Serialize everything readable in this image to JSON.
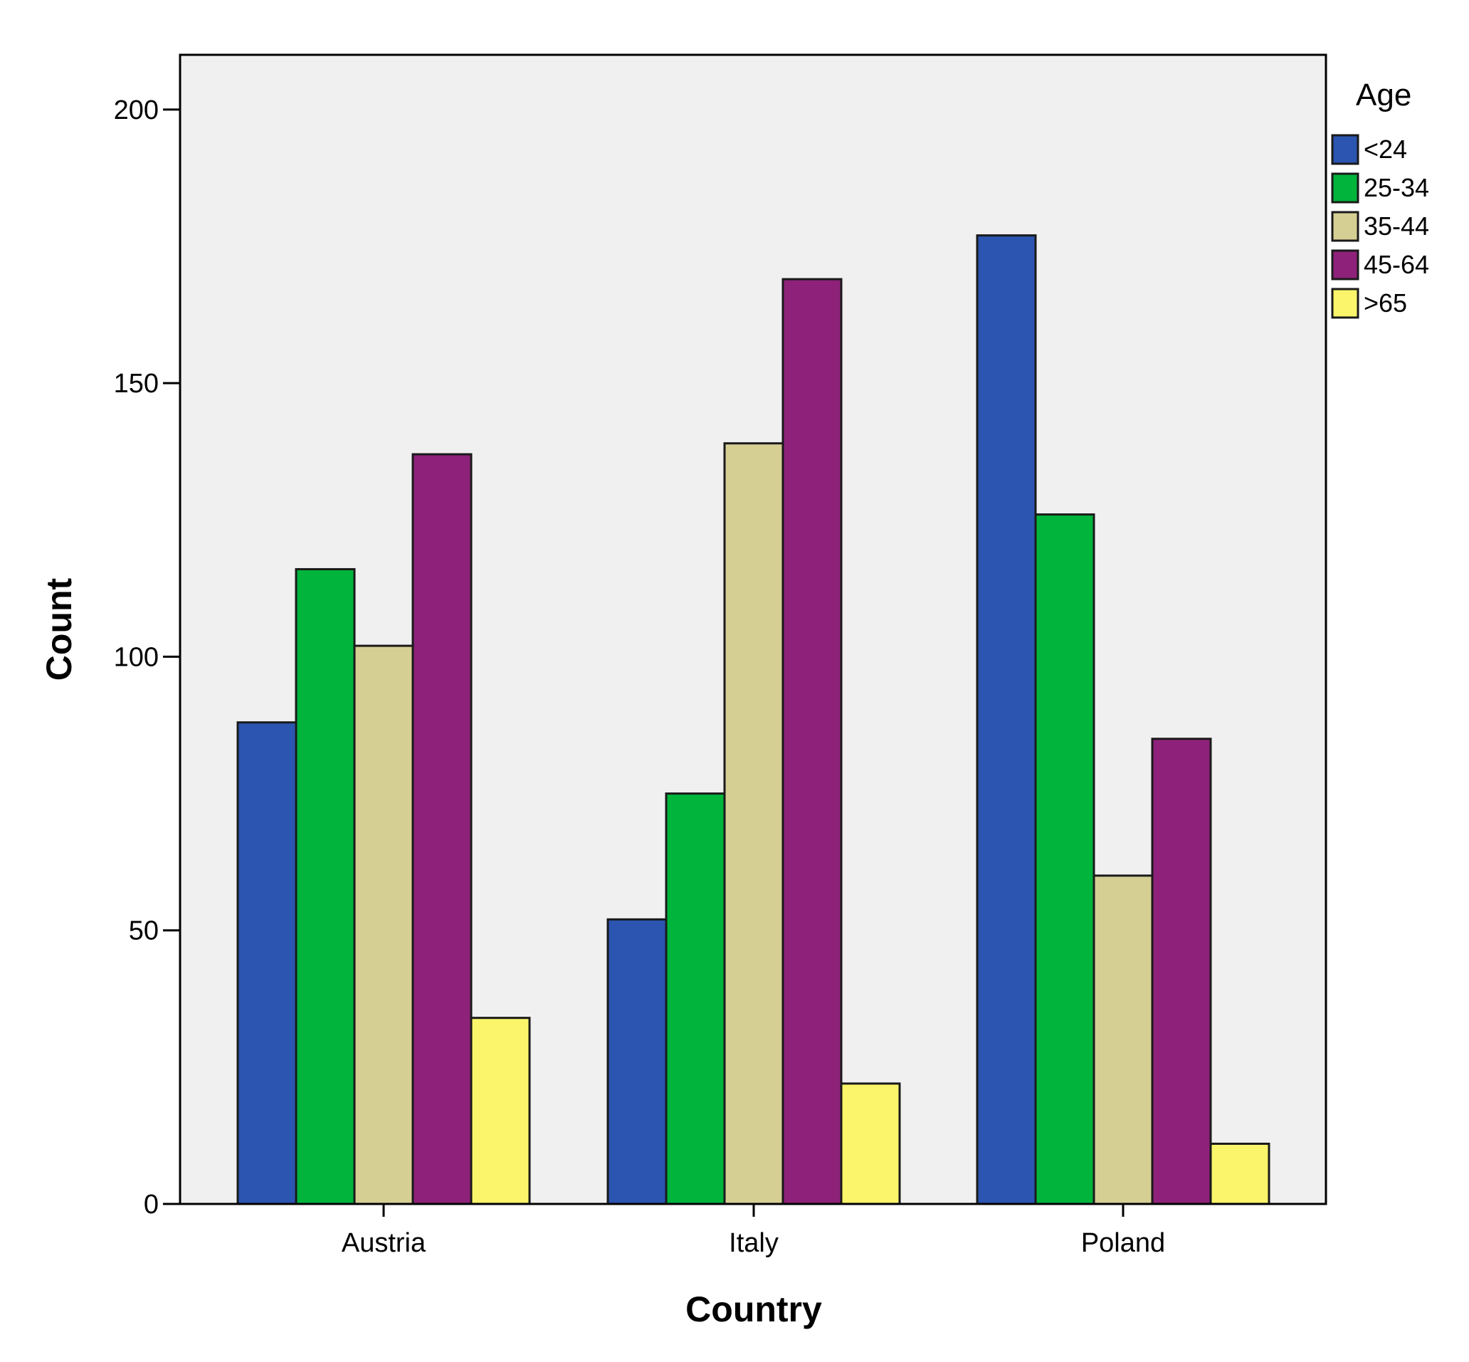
{
  "chart_data": {
    "type": "bar",
    "title": "",
    "xlabel": "Country",
    "ylabel": "Count",
    "ylim": [
      0,
      210
    ],
    "yticks": [
      0,
      50,
      100,
      150,
      200
    ],
    "grid": false,
    "legend_title": "Age",
    "legend_position": "top-right",
    "categories": [
      "Austria",
      "Italy",
      "Poland"
    ],
    "series": [
      {
        "name": "<24",
        "color": "#2B55B0",
        "values": [
          88,
          52,
          177
        ]
      },
      {
        "name": "25-34",
        "color": "#00B43C",
        "values": [
          116,
          75,
          126
        ]
      },
      {
        "name": "35-44",
        "color": "#D6CF94",
        "values": [
          102,
          139,
          60
        ]
      },
      {
        "name": "45-64",
        "color": "#8E227A",
        "values": [
          137,
          169,
          85
        ]
      },
      {
        "name": ">65",
        "color": "#FAF56A",
        "values": [
          34,
          22,
          11
        ]
      }
    ],
    "plot_background": "#F0F0F0"
  }
}
